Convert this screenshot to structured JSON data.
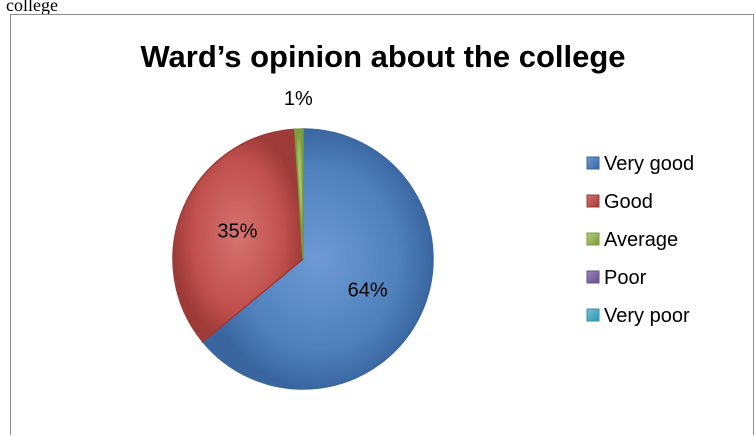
{
  "caption_fragment": "college",
  "chart_data": {
    "type": "pie",
    "title": "Ward’s opinion about the college",
    "categories": [
      "Very good",
      "Good",
      "Average",
      "Poor",
      "Very poor"
    ],
    "values": [
      64,
      35,
      1,
      0,
      0
    ],
    "data_labels": [
      "64%",
      "35%",
      "1%",
      "",
      ""
    ],
    "colors": [
      "#4F81BD",
      "#C0504D",
      "#9BBB59",
      "#8064A2",
      "#4BACC6"
    ],
    "dark_colors": [
      "#3A66A0",
      "#9E3B38",
      "#7A9A3E",
      "#65508A",
      "#3190AA"
    ],
    "light_colors": [
      "#6E9AD4",
      "#D67370",
      "#B3D07A",
      "#9C85BC",
      "#73C3D8"
    ],
    "legend_position": "right",
    "start_angle": "top, clockwise"
  }
}
